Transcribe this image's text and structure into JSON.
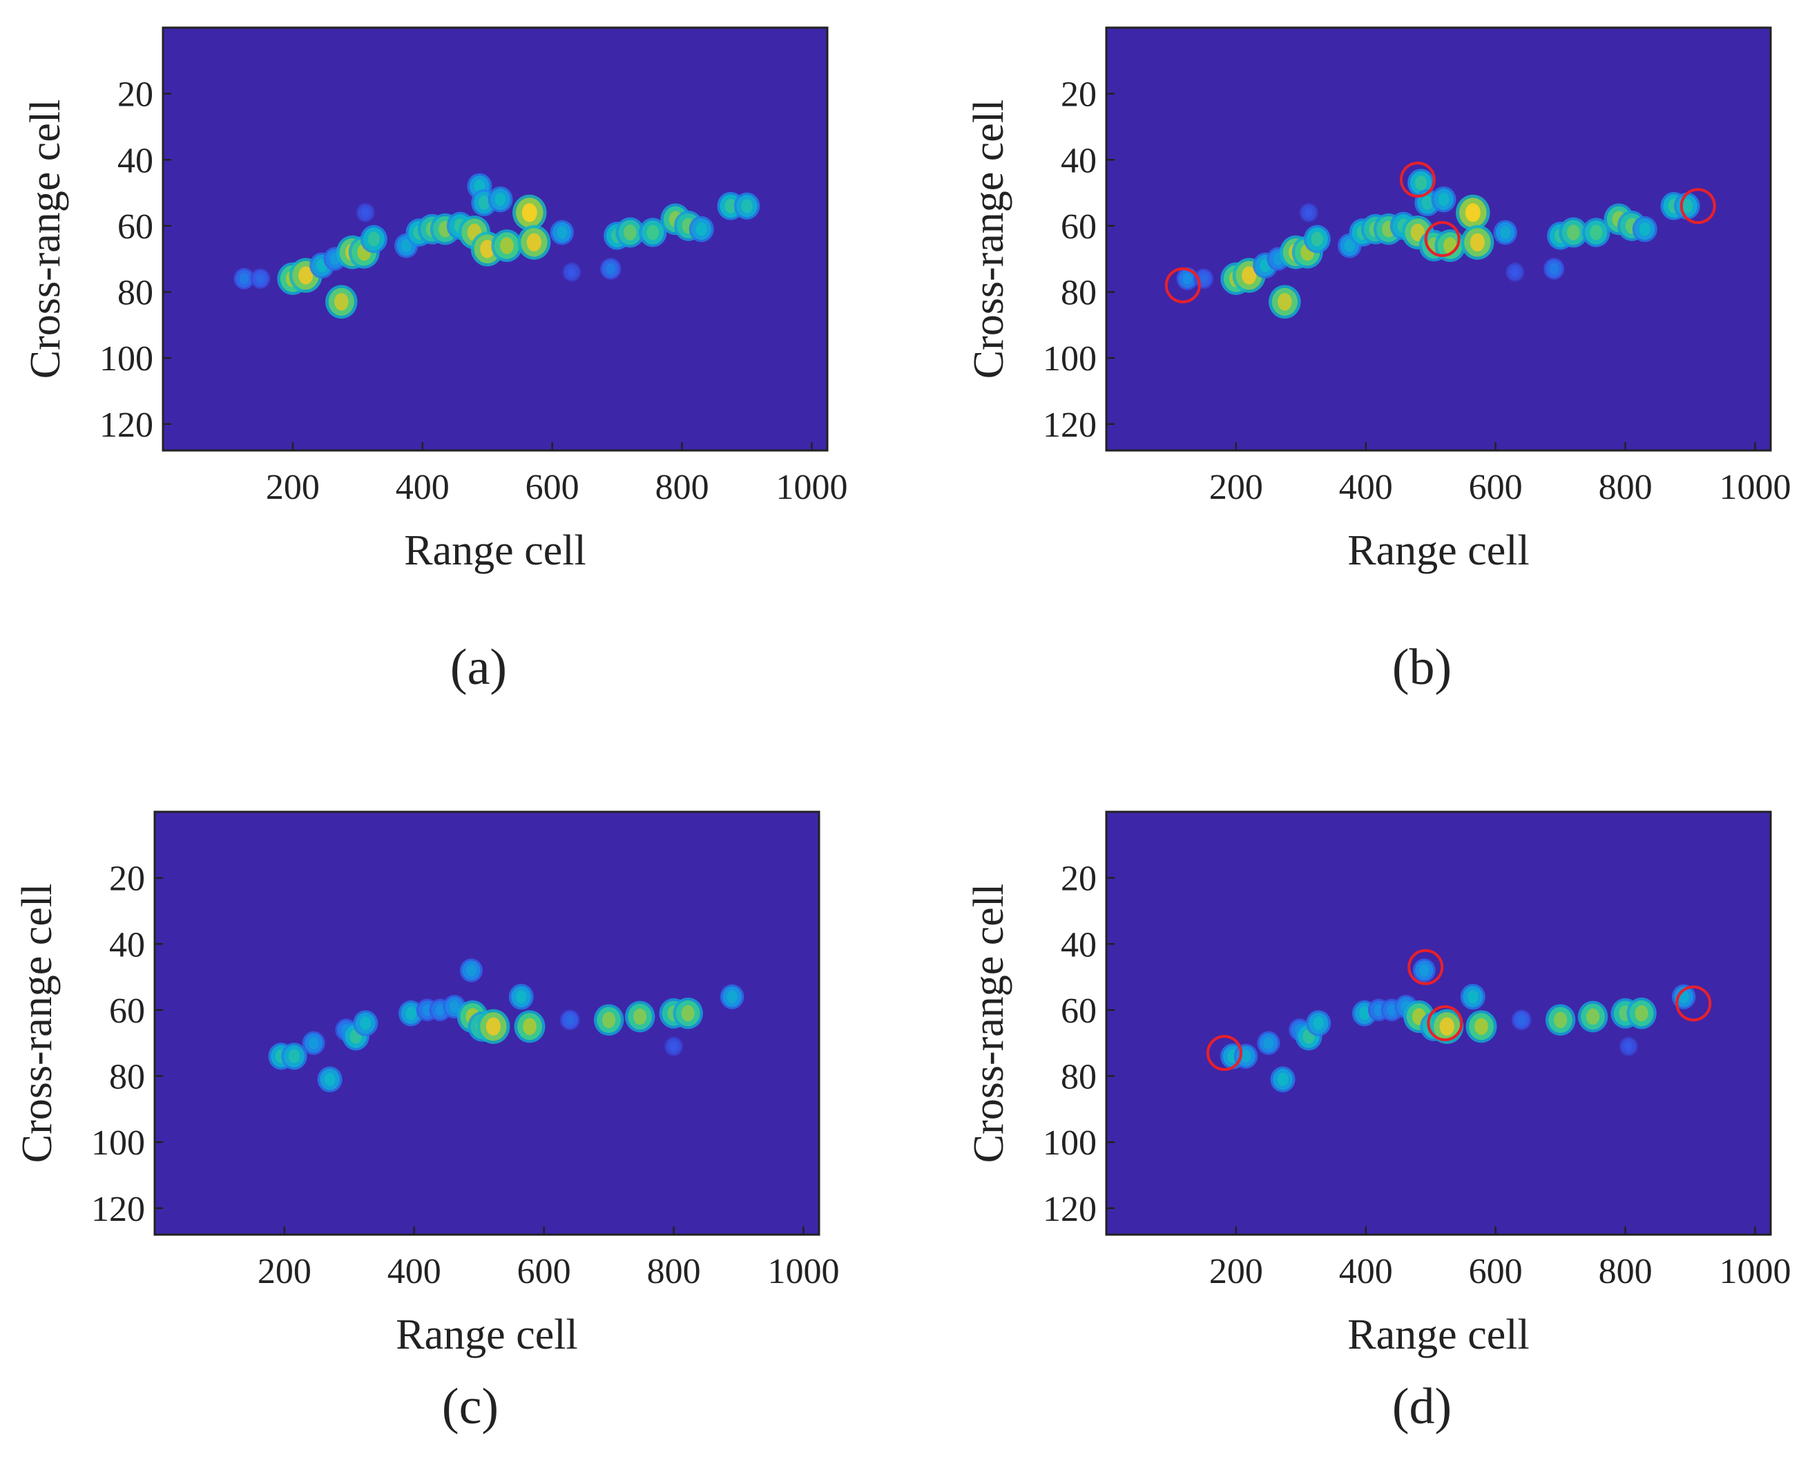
{
  "chart_data": [
    {
      "type": "heatmap",
      "caption": "(a)",
      "xlabel": "Range cell",
      "ylabel": "Cross-range cell",
      "xlim": [
        0,
        1024
      ],
      "ylim": [
        0,
        128
      ],
      "y_reversed": true,
      "xticks": [
        200,
        400,
        600,
        800,
        1000
      ],
      "yticks": [
        20,
        40,
        60,
        80,
        100,
        120
      ],
      "colormap": "parula",
      "background_color": "#3e26a8",
      "scatterers": [
        {
          "x": 125,
          "y": 76,
          "v": 0.25
        },
        {
          "x": 150,
          "y": 76,
          "v": 0.2
        },
        {
          "x": 200,
          "y": 76,
          "v": 0.75
        },
        {
          "x": 220,
          "y": 75,
          "v": 0.85
        },
        {
          "x": 245,
          "y": 72,
          "v": 0.45
        },
        {
          "x": 265,
          "y": 70,
          "v": 0.35
        },
        {
          "x": 275,
          "y": 83,
          "v": 0.8
        },
        {
          "x": 292,
          "y": 68,
          "v": 0.8
        },
        {
          "x": 310,
          "y": 68,
          "v": 0.75
        },
        {
          "x": 325,
          "y": 64,
          "v": 0.55
        },
        {
          "x": 312,
          "y": 56,
          "v": 0.15
        },
        {
          "x": 375,
          "y": 66,
          "v": 0.4
        },
        {
          "x": 395,
          "y": 62,
          "v": 0.55
        },
        {
          "x": 415,
          "y": 61,
          "v": 0.65
        },
        {
          "x": 435,
          "y": 61,
          "v": 0.7
        },
        {
          "x": 458,
          "y": 60,
          "v": 0.55
        },
        {
          "x": 480,
          "y": 62,
          "v": 0.8
        },
        {
          "x": 488,
          "y": 48,
          "v": 0.45
        },
        {
          "x": 495,
          "y": 53,
          "v": 0.5
        },
        {
          "x": 500,
          "y": 67,
          "v": 0.85
        },
        {
          "x": 520,
          "y": 52,
          "v": 0.45
        },
        {
          "x": 530,
          "y": 66,
          "v": 0.75
        },
        {
          "x": 565,
          "y": 56,
          "v": 0.9
        },
        {
          "x": 572,
          "y": 65,
          "v": 0.85
        },
        {
          "x": 615,
          "y": 62,
          "v": 0.4
        },
        {
          "x": 630,
          "y": 74,
          "v": 0.15
        },
        {
          "x": 690,
          "y": 73,
          "v": 0.25
        },
        {
          "x": 700,
          "y": 63,
          "v": 0.55
        },
        {
          "x": 720,
          "y": 62,
          "v": 0.65
        },
        {
          "x": 755,
          "y": 62,
          "v": 0.6
        },
        {
          "x": 790,
          "y": 58,
          "v": 0.7
        },
        {
          "x": 810,
          "y": 60,
          "v": 0.65
        },
        {
          "x": 830,
          "y": 61,
          "v": 0.45
        },
        {
          "x": 875,
          "y": 54,
          "v": 0.55
        },
        {
          "x": 900,
          "y": 54,
          "v": 0.5
        }
      ]
    },
    {
      "type": "heatmap",
      "caption": "(b)",
      "xlabel": "Range cell",
      "ylabel": "Cross-range cell",
      "xlim": [
        0,
        1024
      ],
      "ylim": [
        0,
        128
      ],
      "y_reversed": true,
      "xticks": [
        200,
        400,
        600,
        800,
        1000
      ],
      "yticks": [
        20,
        40,
        60,
        80,
        100,
        120
      ],
      "colormap": "parula",
      "background_color": "#3e26a8",
      "scatterers": [
        {
          "x": 125,
          "y": 76,
          "v": 0.3
        },
        {
          "x": 150,
          "y": 76,
          "v": 0.2
        },
        {
          "x": 200,
          "y": 76,
          "v": 0.75
        },
        {
          "x": 220,
          "y": 75,
          "v": 0.85
        },
        {
          "x": 245,
          "y": 72,
          "v": 0.45
        },
        {
          "x": 265,
          "y": 70,
          "v": 0.35
        },
        {
          "x": 275,
          "y": 83,
          "v": 0.8
        },
        {
          "x": 292,
          "y": 68,
          "v": 0.8
        },
        {
          "x": 310,
          "y": 68,
          "v": 0.75
        },
        {
          "x": 325,
          "y": 64,
          "v": 0.55
        },
        {
          "x": 312,
          "y": 56,
          "v": 0.15
        },
        {
          "x": 375,
          "y": 66,
          "v": 0.4
        },
        {
          "x": 395,
          "y": 62,
          "v": 0.55
        },
        {
          "x": 415,
          "y": 61,
          "v": 0.65
        },
        {
          "x": 435,
          "y": 61,
          "v": 0.7
        },
        {
          "x": 458,
          "y": 60,
          "v": 0.55
        },
        {
          "x": 480,
          "y": 62,
          "v": 0.8
        },
        {
          "x": 485,
          "y": 47,
          "v": 0.55
        },
        {
          "x": 495,
          "y": 53,
          "v": 0.5
        },
        {
          "x": 505,
          "y": 66,
          "v": 0.7
        },
        {
          "x": 520,
          "y": 52,
          "v": 0.45
        },
        {
          "x": 530,
          "y": 66,
          "v": 0.75
        },
        {
          "x": 565,
          "y": 56,
          "v": 0.9
        },
        {
          "x": 572,
          "y": 65,
          "v": 0.85
        },
        {
          "x": 615,
          "y": 62,
          "v": 0.4
        },
        {
          "x": 630,
          "y": 74,
          "v": 0.15
        },
        {
          "x": 690,
          "y": 73,
          "v": 0.25
        },
        {
          "x": 700,
          "y": 63,
          "v": 0.55
        },
        {
          "x": 720,
          "y": 62,
          "v": 0.65
        },
        {
          "x": 755,
          "y": 62,
          "v": 0.6
        },
        {
          "x": 790,
          "y": 58,
          "v": 0.7
        },
        {
          "x": 810,
          "y": 60,
          "v": 0.65
        },
        {
          "x": 830,
          "y": 61,
          "v": 0.45
        },
        {
          "x": 875,
          "y": 54,
          "v": 0.55
        },
        {
          "x": 895,
          "y": 54,
          "v": 0.5
        }
      ],
      "highlight_circles": [
        {
          "x": 118,
          "y": 78
        },
        {
          "x": 480,
          "y": 46
        },
        {
          "x": 518,
          "y": 64
        },
        {
          "x": 912,
          "y": 54
        }
      ],
      "highlight_color": "#e8202a"
    },
    {
      "type": "heatmap",
      "caption": "(c)",
      "xlabel": "Range cell",
      "ylabel": "Cross-range cell",
      "xlim": [
        0,
        1024
      ],
      "ylim": [
        0,
        128
      ],
      "y_reversed": true,
      "xticks": [
        200,
        400,
        600,
        800,
        1000
      ],
      "yticks": [
        20,
        40,
        60,
        80,
        100,
        120
      ],
      "colormap": "parula",
      "background_color": "#3e26a8",
      "scatterers": [
        {
          "x": 195,
          "y": 74,
          "v": 0.5
        },
        {
          "x": 215,
          "y": 74,
          "v": 0.5
        },
        {
          "x": 245,
          "y": 70,
          "v": 0.35
        },
        {
          "x": 270,
          "y": 81,
          "v": 0.45
        },
        {
          "x": 295,
          "y": 66,
          "v": 0.3
        },
        {
          "x": 310,
          "y": 68,
          "v": 0.55
        },
        {
          "x": 325,
          "y": 64,
          "v": 0.45
        },
        {
          "x": 395,
          "y": 61,
          "v": 0.45
        },
        {
          "x": 420,
          "y": 60,
          "v": 0.3
        },
        {
          "x": 440,
          "y": 60,
          "v": 0.3
        },
        {
          "x": 462,
          "y": 59,
          "v": 0.35
        },
        {
          "x": 488,
          "y": 48,
          "v": 0.35
        },
        {
          "x": 490,
          "y": 62,
          "v": 0.75
        },
        {
          "x": 505,
          "y": 65,
          "v": 0.65
        },
        {
          "x": 522,
          "y": 65,
          "v": 0.85
        },
        {
          "x": 565,
          "y": 56,
          "v": 0.45
        },
        {
          "x": 578,
          "y": 65,
          "v": 0.75
        },
        {
          "x": 640,
          "y": 63,
          "v": 0.2
        },
        {
          "x": 700,
          "y": 63,
          "v": 0.7
        },
        {
          "x": 748,
          "y": 62,
          "v": 0.7
        },
        {
          "x": 800,
          "y": 61,
          "v": 0.65
        },
        {
          "x": 822,
          "y": 61,
          "v": 0.7
        },
        {
          "x": 800,
          "y": 71,
          "v": 0.15
        },
        {
          "x": 890,
          "y": 56,
          "v": 0.4
        }
      ]
    },
    {
      "type": "heatmap",
      "caption": "(d)",
      "xlabel": "Range cell",
      "ylabel": "Cross-range cell",
      "xlim": [
        0,
        1024
      ],
      "ylim": [
        0,
        128
      ],
      "y_reversed": true,
      "xticks": [
        200,
        400,
        600,
        800,
        1000
      ],
      "yticks": [
        20,
        40,
        60,
        80,
        100,
        120
      ],
      "colormap": "parula",
      "background_color": "#3e26a8",
      "scatterers": [
        {
          "x": 195,
          "y": 74,
          "v": 0.45
        },
        {
          "x": 215,
          "y": 74,
          "v": 0.4
        },
        {
          "x": 250,
          "y": 70,
          "v": 0.35
        },
        {
          "x": 272,
          "y": 81,
          "v": 0.45
        },
        {
          "x": 298,
          "y": 66,
          "v": 0.3
        },
        {
          "x": 312,
          "y": 68,
          "v": 0.55
        },
        {
          "x": 327,
          "y": 64,
          "v": 0.45
        },
        {
          "x": 398,
          "y": 61,
          "v": 0.45
        },
        {
          "x": 420,
          "y": 60,
          "v": 0.3
        },
        {
          "x": 440,
          "y": 60,
          "v": 0.3
        },
        {
          "x": 462,
          "y": 59,
          "v": 0.35
        },
        {
          "x": 490,
          "y": 48,
          "v": 0.35
        },
        {
          "x": 482,
          "y": 62,
          "v": 0.75
        },
        {
          "x": 505,
          "y": 65,
          "v": 0.6
        },
        {
          "x": 525,
          "y": 65,
          "v": 0.85
        },
        {
          "x": 565,
          "y": 56,
          "v": 0.45
        },
        {
          "x": 578,
          "y": 65,
          "v": 0.75
        },
        {
          "x": 640,
          "y": 63,
          "v": 0.2
        },
        {
          "x": 700,
          "y": 63,
          "v": 0.7
        },
        {
          "x": 750,
          "y": 62,
          "v": 0.7
        },
        {
          "x": 800,
          "y": 61,
          "v": 0.65
        },
        {
          "x": 825,
          "y": 61,
          "v": 0.7
        },
        {
          "x": 805,
          "y": 71,
          "v": 0.15
        },
        {
          "x": 890,
          "y": 56,
          "v": 0.4
        }
      ],
      "highlight_circles": [
        {
          "x": 182,
          "y": 73
        },
        {
          "x": 492,
          "y": 47
        },
        {
          "x": 522,
          "y": 64
        },
        {
          "x": 905,
          "y": 58
        }
      ],
      "highlight_color": "#e8202a"
    }
  ]
}
